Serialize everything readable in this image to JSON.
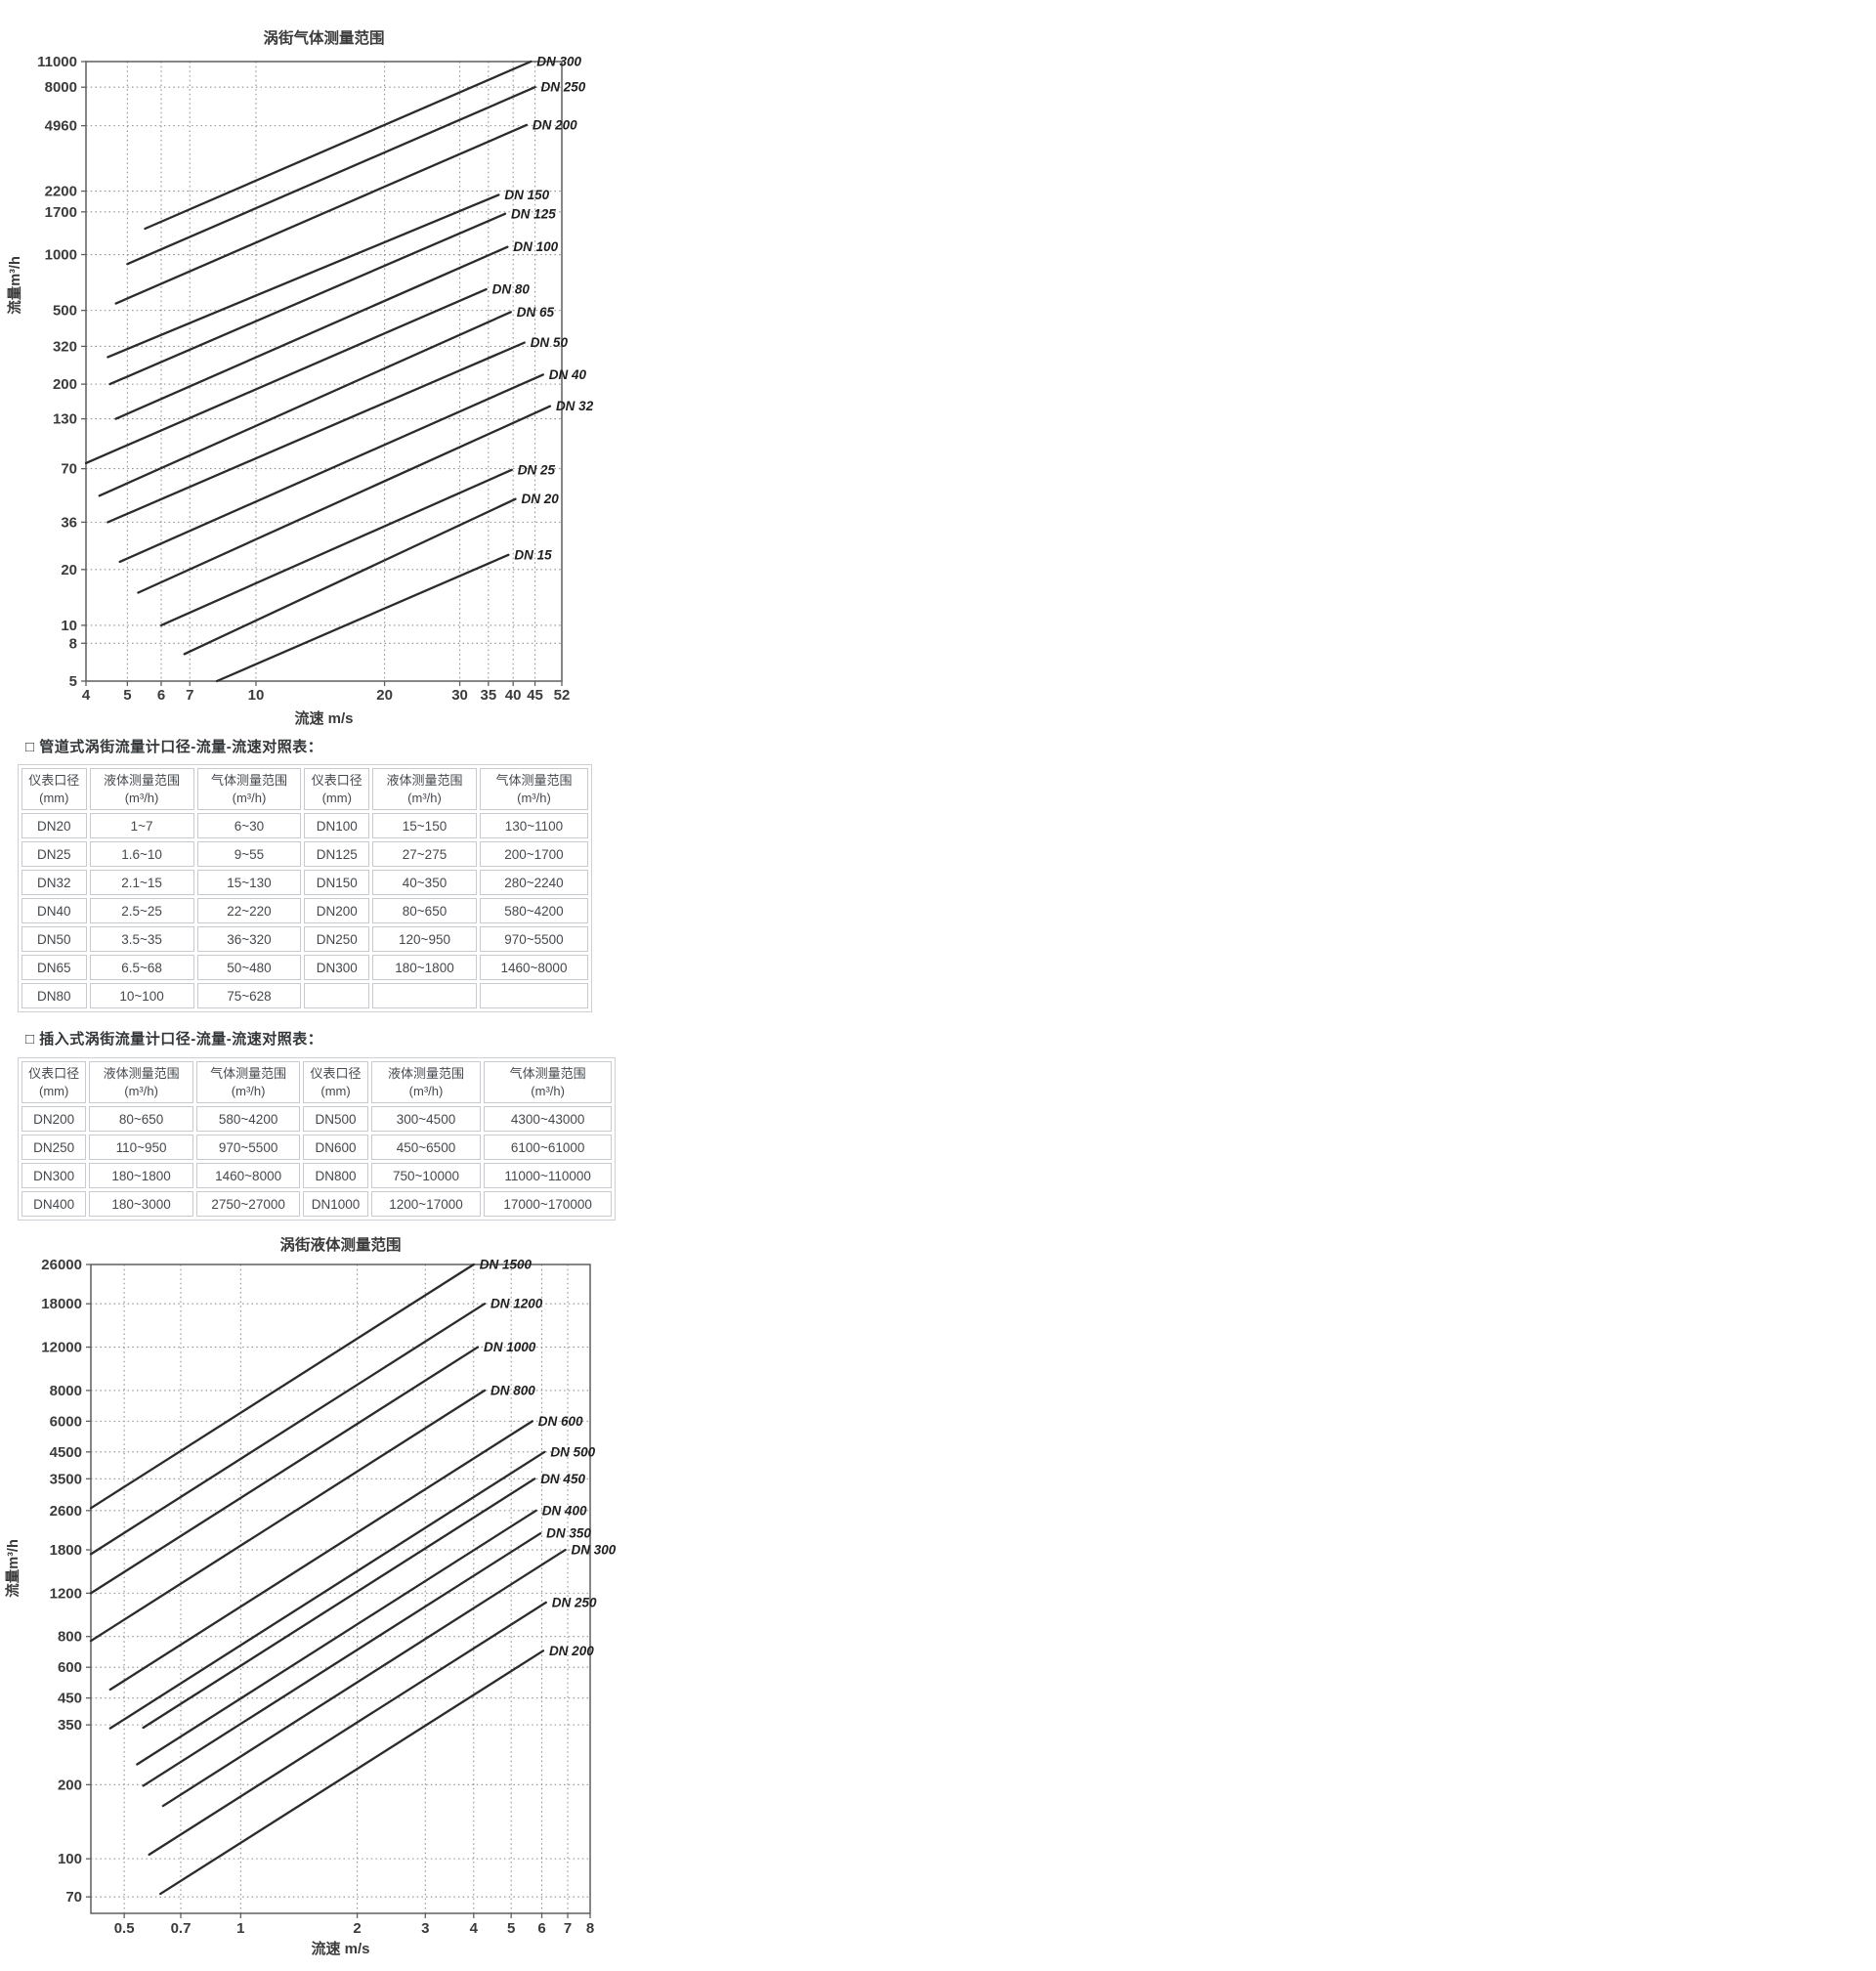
{
  "colors": {
    "line": "#2b2b2b",
    "grid": "#8f8f8f",
    "axis_border": "#5f5f5f",
    "tick_text": "#3b3b3b",
    "dn_label_text": "#1f1f1f",
    "table_border": "#c7cbd0",
    "table_text": "#45494e",
    "caption_text": "#333639",
    "background": "#ffffff"
  },
  "chart_data": [
    {
      "type": "line",
      "title": "涡街气体测量范围",
      "xlabel": "流速 m/s",
      "ylabel": "流量m³/h",
      "xscale": "log",
      "yscale": "log",
      "grid": true,
      "legend": "inline-end-labels",
      "xlim": [
        4,
        52
      ],
      "ylim": [
        5,
        11000
      ],
      "xticks": [
        4,
        5,
        6,
        7,
        10,
        20,
        30,
        35,
        40,
        45,
        52
      ],
      "yticks": [
        5,
        8,
        10,
        20,
        36,
        70,
        130,
        200,
        320,
        500,
        1000,
        1700,
        2200,
        4960,
        8000,
        11000
      ],
      "series": [
        {
          "name": "DN 300",
          "points": [
            [
              5.5,
              1380
            ],
            [
              44,
              11000
            ]
          ]
        },
        {
          "name": "DN 250",
          "points": [
            [
              5.0,
              890
            ],
            [
              45,
              8000
            ]
          ]
        },
        {
          "name": "DN 200",
          "points": [
            [
              4.7,
              545
            ],
            [
              43,
              5000
            ]
          ]
        },
        {
          "name": "DN 150",
          "points": [
            [
              4.5,
              280
            ],
            [
              37,
              2100
            ]
          ]
        },
        {
          "name": "DN 125",
          "points": [
            [
              4.55,
              200
            ],
            [
              38.3,
              1660
            ]
          ]
        },
        {
          "name": "DN 100",
          "points": [
            [
              4.7,
              130
            ],
            [
              38.8,
              1100
            ]
          ]
        },
        {
          "name": "DN 80",
          "points": [
            [
              4.0,
              75
            ],
            [
              34.6,
              650
            ]
          ]
        },
        {
          "name": "DN 65",
          "points": [
            [
              4.3,
              50
            ],
            [
              39.5,
              490
            ]
          ]
        },
        {
          "name": "DN 50",
          "points": [
            [
              4.5,
              36
            ],
            [
              42.5,
              335
            ]
          ]
        },
        {
          "name": "DN 40",
          "points": [
            [
              4.8,
              22
            ],
            [
              47,
              225
            ]
          ]
        },
        {
          "name": "DN 32",
          "points": [
            [
              5.3,
              15
            ],
            [
              48.8,
              152
            ]
          ]
        },
        {
          "name": "DN 25",
          "points": [
            [
              6.0,
              10
            ],
            [
              39.7,
              69
            ]
          ]
        },
        {
          "name": "DN 20",
          "points": [
            [
              6.8,
              7
            ],
            [
              40.5,
              48
            ]
          ]
        },
        {
          "name": "DN 15",
          "points": [
            [
              8.1,
              5
            ],
            [
              39,
              24
            ]
          ]
        }
      ]
    },
    {
      "type": "line",
      "title": "涡街液体测量范围",
      "xlabel": "流速 m/s",
      "ylabel": "流量m³/h",
      "xscale": "log",
      "yscale": "log",
      "grid": true,
      "legend": "inline-end-labels",
      "xlim": [
        0.41,
        8
      ],
      "ylim": [
        60,
        26000
      ],
      "xticks": [
        0.5,
        0.7,
        1,
        2,
        3,
        4,
        5,
        6,
        7,
        8
      ],
      "yticks": [
        70,
        100,
        200,
        350,
        450,
        600,
        800,
        1200,
        1800,
        2600,
        3500,
        4500,
        6000,
        8000,
        12000,
        18000,
        26000
      ],
      "series": [
        {
          "name": "DN 1500",
          "points": [
            [
              0.41,
              2660
            ],
            [
              4.0,
              26000
            ]
          ]
        },
        {
          "name": "DN 1200",
          "points": [
            [
              0.41,
              1730
            ],
            [
              4.27,
              18000
            ]
          ]
        },
        {
          "name": "DN 1000",
          "points": [
            [
              0.41,
              1200
            ],
            [
              4.1,
              12000
            ]
          ]
        },
        {
          "name": "DN 800",
          "points": [
            [
              0.41,
              768
            ],
            [
              4.27,
              8000
            ]
          ]
        },
        {
          "name": "DN 600",
          "points": [
            [
              0.46,
              487
            ],
            [
              5.67,
              6000
            ]
          ]
        },
        {
          "name": "DN 500",
          "points": [
            [
              0.46,
              339
            ],
            [
              6.1,
              4500
            ]
          ]
        },
        {
          "name": "DN 450",
          "points": [
            [
              0.56,
              341
            ],
            [
              5.75,
              3500
            ]
          ]
        },
        {
          "name": "DN 400",
          "points": [
            [
              0.54,
              242
            ],
            [
              5.8,
              2600
            ]
          ]
        },
        {
          "name": "DN 350",
          "points": [
            [
              0.56,
              198
            ],
            [
              5.95,
              2100
            ]
          ]
        },
        {
          "name": "DN 300",
          "points": [
            [
              0.63,
              164
            ],
            [
              6.9,
              1800
            ]
          ]
        },
        {
          "name": "DN 250",
          "points": [
            [
              0.58,
              104
            ],
            [
              6.15,
              1100
            ]
          ]
        },
        {
          "name": "DN 200",
          "points": [
            [
              0.62,
              72
            ],
            [
              6.05,
              700
            ]
          ]
        }
      ]
    }
  ],
  "tables": {
    "pipe": {
      "caption": "□ 管道式涡街流量计口径-流量-流速对照表：",
      "headers": [
        [
          "仪表口径",
          "(mm)"
        ],
        [
          "液体测量范围",
          "(m³/h)"
        ],
        [
          "气体测量范围",
          "(m³/h)"
        ],
        [
          "仪表口径",
          "(mm)"
        ],
        [
          "液体测量范围",
          "(m³/h)"
        ],
        [
          "气体测量范围",
          "(m³/h)"
        ]
      ],
      "rows": [
        [
          "DN20",
          "1~7",
          "6~30",
          "DN100",
          "15~150",
          "130~1100"
        ],
        [
          "DN25",
          "1.6~10",
          "9~55",
          "DN125",
          "27~275",
          "200~1700"
        ],
        [
          "DN32",
          "2.1~15",
          "15~130",
          "DN150",
          "40~350",
          "280~2240"
        ],
        [
          "DN40",
          "2.5~25",
          "22~220",
          "DN200",
          "80~650",
          "580~4200"
        ],
        [
          "DN50",
          "3.5~35",
          "36~320",
          "DN250",
          "120~950",
          "970~5500"
        ],
        [
          "DN65",
          "6.5~68",
          "50~480",
          "DN300",
          "180~1800",
          "1460~8000"
        ],
        [
          "DN80",
          "10~100",
          "75~628",
          "",
          "",
          ""
        ]
      ]
    },
    "insertion": {
      "caption": "□ 插入式涡街流量计口径-流量-流速对照表：",
      "headers": [
        [
          "仪表口径",
          "(mm)"
        ],
        [
          "液体测量范围",
          "(m³/h)"
        ],
        [
          "气体测量范围",
          "(m³/h)"
        ],
        [
          "仪表口径",
          "(mm)"
        ],
        [
          "液体测量范围",
          "(m³/h)"
        ],
        [
          "气体测量范围",
          "(m³/h)"
        ]
      ],
      "rows": [
        [
          "DN200",
          "80~650",
          "580~4200",
          "DN500",
          "300~4500",
          "4300~43000"
        ],
        [
          "DN250",
          "110~950",
          "970~5500",
          "DN600",
          "450~6500",
          "6100~61000"
        ],
        [
          "DN300",
          "180~1800",
          "1460~8000",
          "DN800",
          "750~10000",
          "11000~110000"
        ],
        [
          "DN400",
          "180~3000",
          "2750~27000",
          "DN1000",
          "1200~17000",
          "17000~170000"
        ]
      ]
    }
  }
}
